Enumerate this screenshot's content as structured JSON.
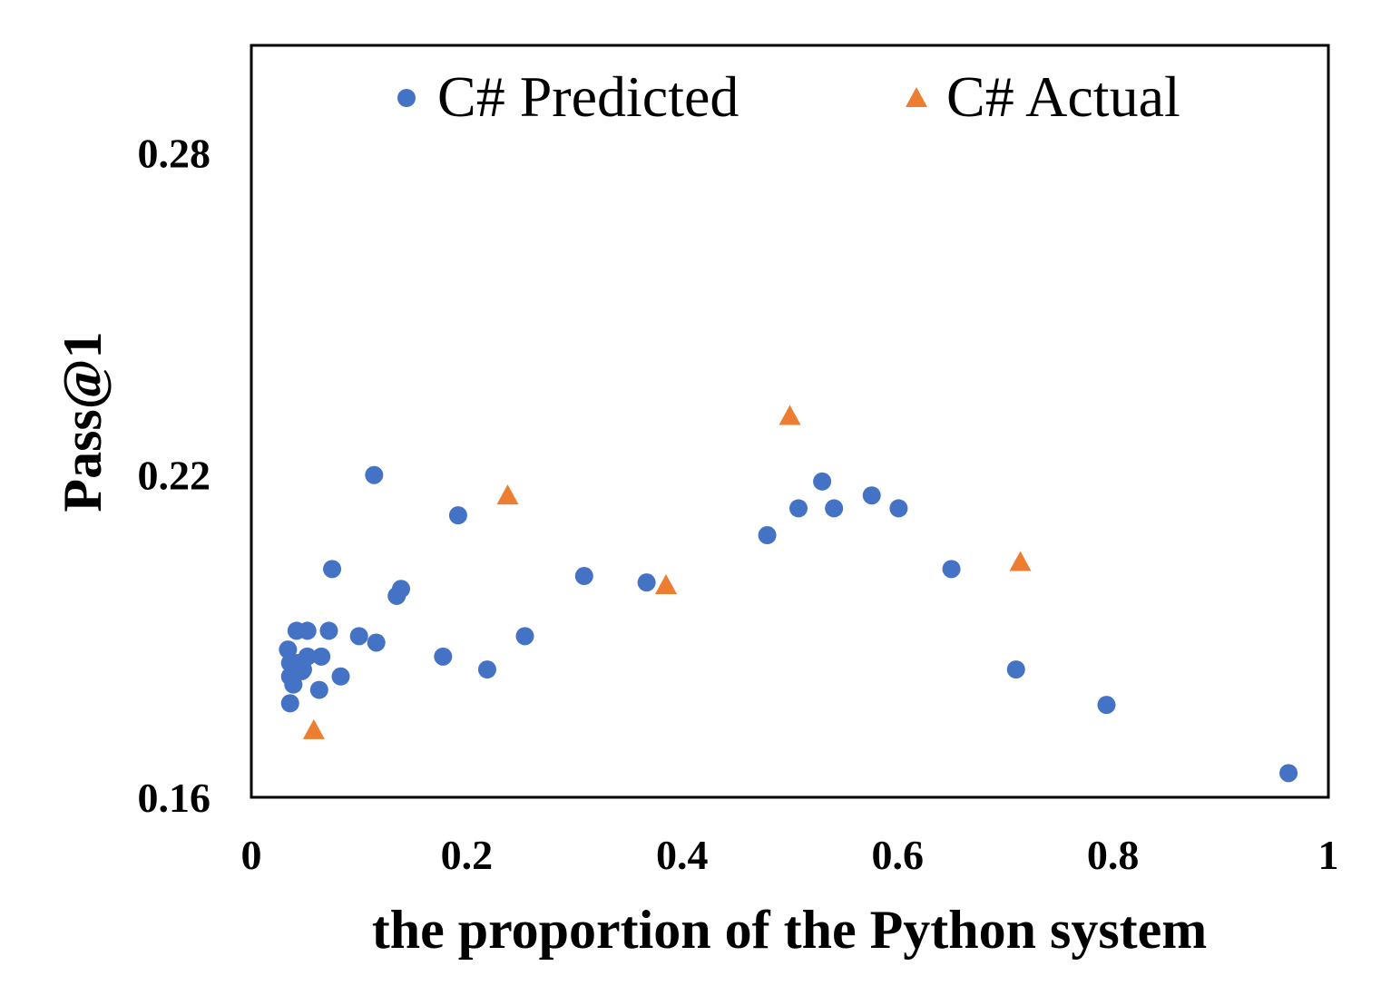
{
  "chart_data": {
    "type": "scatter",
    "title": "",
    "xlabel": "the proportion of the Python system",
    "ylabel": "Pass@1",
    "xlim": [
      0,
      1
    ],
    "ylim": [
      0.16,
      0.3
    ],
    "x_ticks": [
      {
        "value": 0,
        "label": "0"
      },
      {
        "value": 0.2,
        "label": "0.2"
      },
      {
        "value": 0.4,
        "label": "0.4"
      },
      {
        "value": 0.6,
        "label": "0.6"
      },
      {
        "value": 0.8,
        "label": "0.8"
      },
      {
        "value": 1,
        "label": "1"
      }
    ],
    "y_ticks": [
      {
        "value": 0.16,
        "label": "0.16"
      },
      {
        "value": 0.22,
        "label": "0.22"
      },
      {
        "value": 0.28,
        "label": "0.28"
      }
    ],
    "grid": false,
    "legend_position": "top",
    "series": [
      {
        "name": "C# Predicted",
        "marker": "circle",
        "color": "#4472C4",
        "points": [
          {
            "x": 0.034,
            "y": 0.1875
          },
          {
            "x": 0.036,
            "y": 0.185
          },
          {
            "x": 0.036,
            "y": 0.1825
          },
          {
            "x": 0.036,
            "y": 0.1775
          },
          {
            "x": 0.039,
            "y": 0.181
          },
          {
            "x": 0.042,
            "y": 0.191
          },
          {
            "x": 0.043,
            "y": 0.185
          },
          {
            "x": 0.047,
            "y": 0.1835
          },
          {
            "x": 0.048,
            "y": 0.1838
          },
          {
            "x": 0.052,
            "y": 0.191
          },
          {
            "x": 0.052,
            "y": 0.1862
          },
          {
            "x": 0.063,
            "y": 0.18
          },
          {
            "x": 0.065,
            "y": 0.1862
          },
          {
            "x": 0.072,
            "y": 0.191
          },
          {
            "x": 0.075,
            "y": 0.2025
          },
          {
            "x": 0.083,
            "y": 0.1825
          },
          {
            "x": 0.1,
            "y": 0.19
          },
          {
            "x": 0.114,
            "y": 0.22
          },
          {
            "x": 0.116,
            "y": 0.1888
          },
          {
            "x": 0.135,
            "y": 0.1975
          },
          {
            "x": 0.139,
            "y": 0.1988
          },
          {
            "x": 0.178,
            "y": 0.1862
          },
          {
            "x": 0.192,
            "y": 0.2125
          },
          {
            "x": 0.219,
            "y": 0.1838
          },
          {
            "x": 0.254,
            "y": 0.19
          },
          {
            "x": 0.309,
            "y": 0.2012
          },
          {
            "x": 0.367,
            "y": 0.2
          },
          {
            "x": 0.479,
            "y": 0.2088
          },
          {
            "x": 0.508,
            "y": 0.2138
          },
          {
            "x": 0.53,
            "y": 0.2188
          },
          {
            "x": 0.541,
            "y": 0.2138
          },
          {
            "x": 0.576,
            "y": 0.2162
          },
          {
            "x": 0.601,
            "y": 0.2138
          },
          {
            "x": 0.65,
            "y": 0.2025
          },
          {
            "x": 0.71,
            "y": 0.1838
          },
          {
            "x": 0.794,
            "y": 0.1772
          },
          {
            "x": 0.963,
            "y": 0.1645
          }
        ]
      },
      {
        "name": "C# Actual",
        "marker": "triangle",
        "color": "#ED7D31",
        "points": [
          {
            "x": 0.058,
            "y": 0.1725
          },
          {
            "x": 0.238,
            "y": 0.2162
          },
          {
            "x": 0.385,
            "y": 0.1995
          },
          {
            "x": 0.5,
            "y": 0.231
          },
          {
            "x": 0.714,
            "y": 0.2038
          }
        ]
      }
    ]
  }
}
